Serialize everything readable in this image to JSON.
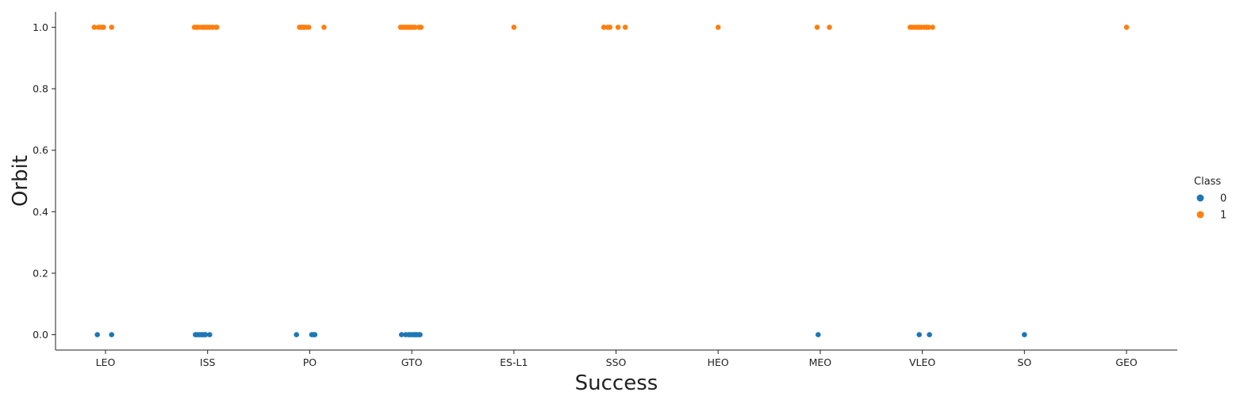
{
  "chart_data": {
    "type": "scatter",
    "style": "categorical strip plot with jitter",
    "xlabel": "Success",
    "ylabel": "Orbit",
    "categories": [
      "LEO",
      "ISS",
      "PO",
      "GTO",
      "ES-L1",
      "SSO",
      "HEO",
      "MEO",
      "VLEO",
      "SO",
      "GEO"
    ],
    "ylim": [
      -0.05,
      1.05
    ],
    "yticks": [
      "0.0",
      "0.2",
      "0.4",
      "0.6",
      "0.8",
      "1.0"
    ],
    "ytick_values": [
      0,
      0.2,
      0.4,
      0.6,
      0.8,
      1.0
    ],
    "grid": false,
    "legend": {
      "title": "Class",
      "placement": "right",
      "entries": [
        "0",
        "1"
      ]
    },
    "series": [
      {
        "name": "0",
        "color": "#1f77b4",
        "points": [
          {
            "category": "LEO",
            "y": 0,
            "jitter": -0.08
          },
          {
            "category": "LEO",
            "y": 0,
            "jitter": 0.06
          },
          {
            "category": "ISS",
            "y": 0,
            "jitter": -0.12
          },
          {
            "category": "ISS",
            "y": 0,
            "jitter": -0.1
          },
          {
            "category": "ISS",
            "y": 0,
            "jitter": -0.08
          },
          {
            "category": "ISS",
            "y": 0,
            "jitter": -0.06
          },
          {
            "category": "ISS",
            "y": 0,
            "jitter": -0.05
          },
          {
            "category": "ISS",
            "y": 0,
            "jitter": -0.03
          },
          {
            "category": "ISS",
            "y": 0,
            "jitter": -0.02
          },
          {
            "category": "ISS",
            "y": 0,
            "jitter": 0.02
          },
          {
            "category": "PO",
            "y": 0,
            "jitter": -0.13
          },
          {
            "category": "PO",
            "y": 0,
            "jitter": 0.02
          },
          {
            "category": "PO",
            "y": 0,
            "jitter": 0.04
          },
          {
            "category": "PO",
            "y": 0,
            "jitter": 0.05
          },
          {
            "category": "GTO",
            "y": 0,
            "jitter": -0.1
          },
          {
            "category": "GTO",
            "y": 0,
            "jitter": -0.06
          },
          {
            "category": "GTO",
            "y": 0,
            "jitter": -0.03
          },
          {
            "category": "GTO",
            "y": 0,
            "jitter": -0.01
          },
          {
            "category": "GTO",
            "y": 0,
            "jitter": 0.01
          },
          {
            "category": "GTO",
            "y": 0,
            "jitter": 0.03
          },
          {
            "category": "GTO",
            "y": 0,
            "jitter": 0.04
          },
          {
            "category": "GTO",
            "y": 0,
            "jitter": 0.05
          },
          {
            "category": "GTO",
            "y": 0,
            "jitter": 0.07
          },
          {
            "category": "GTO",
            "y": 0,
            "jitter": 0.08
          },
          {
            "category": "MEO",
            "y": 0,
            "jitter": -0.02
          },
          {
            "category": "VLEO",
            "y": 0,
            "jitter": -0.03
          },
          {
            "category": "VLEO",
            "y": 0,
            "jitter": 0.07
          },
          {
            "category": "SO",
            "y": 0,
            "jitter": 0.0
          }
        ]
      },
      {
        "name": "1",
        "color": "#ff7f0e",
        "points": [
          {
            "category": "LEO",
            "y": 1,
            "jitter": -0.11
          },
          {
            "category": "LEO",
            "y": 1,
            "jitter": -0.07
          },
          {
            "category": "LEO",
            "y": 1,
            "jitter": -0.04
          },
          {
            "category": "LEO",
            "y": 1,
            "jitter": -0.02
          },
          {
            "category": "LEO",
            "y": 1,
            "jitter": 0.06
          },
          {
            "category": "ISS",
            "y": 1,
            "jitter": -0.13
          },
          {
            "category": "ISS",
            "y": 1,
            "jitter": -0.11
          },
          {
            "category": "ISS",
            "y": 1,
            "jitter": -0.09
          },
          {
            "category": "ISS",
            "y": 1,
            "jitter": -0.06
          },
          {
            "category": "ISS",
            "y": 1,
            "jitter": -0.04
          },
          {
            "category": "ISS",
            "y": 1,
            "jitter": -0.02
          },
          {
            "category": "ISS",
            "y": 1,
            "jitter": 0.0
          },
          {
            "category": "ISS",
            "y": 1,
            "jitter": 0.02
          },
          {
            "category": "ISS",
            "y": 1,
            "jitter": 0.05
          },
          {
            "category": "ISS",
            "y": 1,
            "jitter": 0.08
          },
          {
            "category": "ISS",
            "y": 1,
            "jitter": 0.09
          },
          {
            "category": "PO",
            "y": 1,
            "jitter": -0.1
          },
          {
            "category": "PO",
            "y": 1,
            "jitter": -0.08
          },
          {
            "category": "PO",
            "y": 1,
            "jitter": -0.06
          },
          {
            "category": "PO",
            "y": 1,
            "jitter": -0.04
          },
          {
            "category": "PO",
            "y": 1,
            "jitter": -0.01
          },
          {
            "category": "PO",
            "y": 1,
            "jitter": 0.14
          },
          {
            "category": "GTO",
            "y": 1,
            "jitter": -0.11
          },
          {
            "category": "GTO",
            "y": 1,
            "jitter": -0.09
          },
          {
            "category": "GTO",
            "y": 1,
            "jitter": -0.07
          },
          {
            "category": "GTO",
            "y": 1,
            "jitter": -0.05
          },
          {
            "category": "GTO",
            "y": 1,
            "jitter": -0.03
          },
          {
            "category": "GTO",
            "y": 1,
            "jitter": -0.01
          },
          {
            "category": "GTO",
            "y": 1,
            "jitter": 0.01
          },
          {
            "category": "GTO",
            "y": 1,
            "jitter": 0.03
          },
          {
            "category": "GTO",
            "y": 1,
            "jitter": 0.07
          },
          {
            "category": "GTO",
            "y": 1,
            "jitter": 0.09
          },
          {
            "category": "ES-L1",
            "y": 1,
            "jitter": 0.0
          },
          {
            "category": "SSO",
            "y": 1,
            "jitter": -0.12
          },
          {
            "category": "SSO",
            "y": 1,
            "jitter": -0.08
          },
          {
            "category": "SSO",
            "y": 1,
            "jitter": -0.06
          },
          {
            "category": "SSO",
            "y": 1,
            "jitter": 0.02
          },
          {
            "category": "SSO",
            "y": 1,
            "jitter": 0.09
          },
          {
            "category": "HEO",
            "y": 1,
            "jitter": 0.0
          },
          {
            "category": "MEO",
            "y": 1,
            "jitter": -0.03
          },
          {
            "category": "MEO",
            "y": 1,
            "jitter": 0.09
          },
          {
            "category": "VLEO",
            "y": 1,
            "jitter": -0.12
          },
          {
            "category": "VLEO",
            "y": 1,
            "jitter": -0.1
          },
          {
            "category": "VLEO",
            "y": 1,
            "jitter": -0.07
          },
          {
            "category": "VLEO",
            "y": 1,
            "jitter": -0.05
          },
          {
            "category": "VLEO",
            "y": 1,
            "jitter": -0.03
          },
          {
            "category": "VLEO",
            "y": 1,
            "jitter": -0.01
          },
          {
            "category": "VLEO",
            "y": 1,
            "jitter": 0.02
          },
          {
            "category": "VLEO",
            "y": 1,
            "jitter": 0.04
          },
          {
            "category": "VLEO",
            "y": 1,
            "jitter": 0.06
          },
          {
            "category": "VLEO",
            "y": 1,
            "jitter": 0.1
          },
          {
            "category": "GEO",
            "y": 1,
            "jitter": 0.0
          }
        ]
      }
    ]
  }
}
